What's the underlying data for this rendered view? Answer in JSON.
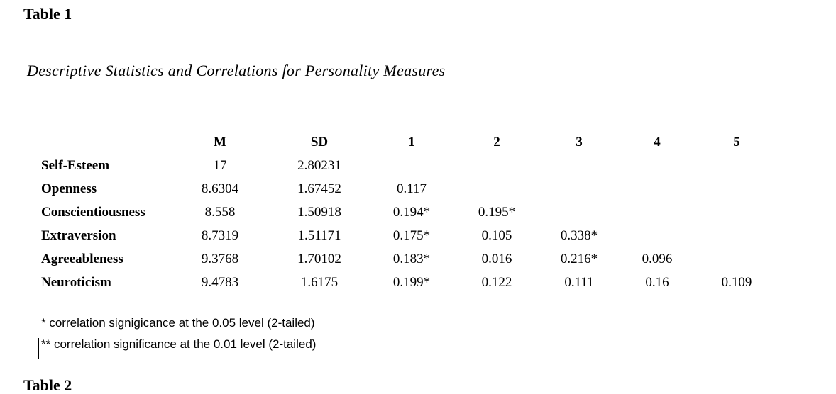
{
  "document": {
    "heading_table1": "Table 1",
    "caption": "Descriptive Statistics and Correlations for Personality Measures",
    "heading_table2": "Table 2"
  },
  "table": {
    "columns": [
      "",
      "M",
      "SD",
      "1",
      "2",
      "3",
      "4",
      "5"
    ],
    "rows": [
      {
        "label": "Self-Esteem",
        "values": [
          "17",
          "2.80231",
          "",
          "",
          "",
          "",
          ""
        ]
      },
      {
        "label": "Openness",
        "values": [
          "8.6304",
          "1.67452",
          "0.117",
          "",
          "",
          "",
          ""
        ]
      },
      {
        "label": "Conscientiousness",
        "values": [
          "8.558",
          "1.50918",
          "0.194*",
          "0.195*",
          "",
          "",
          ""
        ]
      },
      {
        "label": "Extraversion",
        "values": [
          "8.7319",
          "1.51171",
          "0.175*",
          "0.105",
          "0.338*",
          "",
          ""
        ]
      },
      {
        "label": "Agreeableness",
        "values": [
          "9.3768",
          "1.70102",
          "0.183*",
          "0.016",
          "0.216*",
          "0.096",
          ""
        ]
      },
      {
        "label": "Neuroticism",
        "values": [
          "9.4783",
          "1.6175",
          "0.199*",
          "0.122",
          "0.111",
          "0.16",
          "0.109"
        ]
      }
    ]
  },
  "footnotes": [
    "* correlation signigicance at the 0.05 level (2-tailed)",
    "** correlation significance at the 0.01 level (2-tailed)"
  ],
  "colors": {
    "text": "#000000",
    "page_background": "#ffffff"
  }
}
